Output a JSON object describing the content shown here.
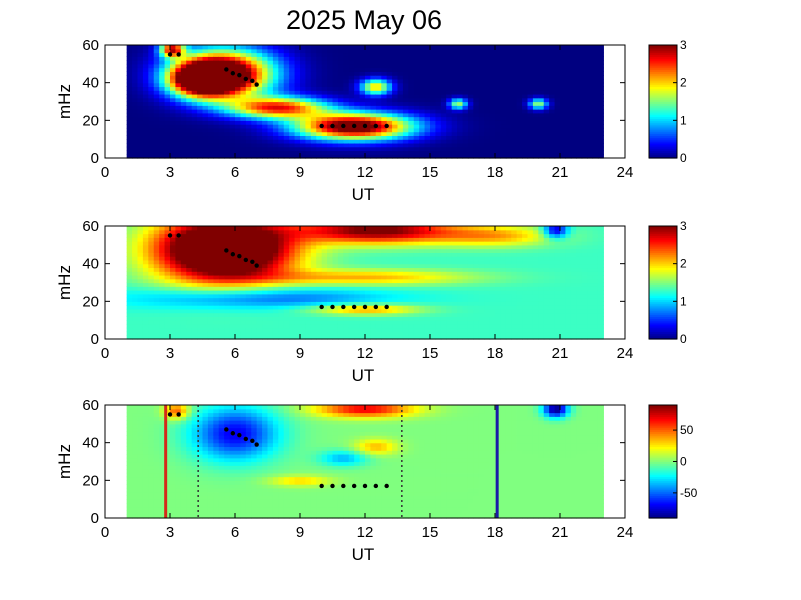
{
  "title": "2025 May 06",
  "chart_data": [
    {
      "type": "heatmap",
      "xlabel": "UT",
      "ylabel": "mHz",
      "xlim": [
        0,
        24
      ],
      "ylim": [
        0,
        60
      ],
      "xticks": [
        "0",
        "3",
        "6",
        "9",
        "12",
        "15",
        "18",
        "21",
        "24"
      ],
      "yticks": [
        "0",
        "20",
        "40",
        "60"
      ],
      "data_range_ut": [
        1,
        23
      ],
      "colorbar": {
        "ticks": [
          "0",
          "1",
          "2",
          "3"
        ],
        "range": [
          0,
          3
        ]
      },
      "features": [
        {
          "ut": 5.5,
          "mhz": 45,
          "strength": 3.5,
          "sx": 1.6,
          "sy": 9
        },
        {
          "ut": 4.5,
          "mhz": 42,
          "strength": 3.2,
          "sx": 1.0,
          "sy": 6
        },
        {
          "ut": 8.0,
          "mhz": 27,
          "strength": 2.5,
          "sx": 1.6,
          "sy": 4
        },
        {
          "ut": 11.5,
          "mhz": 17,
          "strength": 3.4,
          "sx": 1.9,
          "sy": 5
        },
        {
          "ut": 12.5,
          "mhz": 38,
          "strength": 2.0,
          "sx": 0.5,
          "sy": 3
        },
        {
          "ut": 16.3,
          "mhz": 29,
          "strength": 1.6,
          "sx": 0.3,
          "sy": 2
        },
        {
          "ut": 20.0,
          "mhz": 29,
          "strength": 1.6,
          "sx": 0.3,
          "sy": 2
        },
        {
          "ut": 3.1,
          "mhz": 58,
          "strength": 2.5,
          "sx": 0.4,
          "sy": 3
        }
      ],
      "background": 0,
      "markers": [
        {
          "ut": 3.0,
          "mhz": 55
        },
        {
          "ut": 3.4,
          "mhz": 55
        },
        {
          "ut": 5.6,
          "mhz": 47
        },
        {
          "ut": 5.9,
          "mhz": 45
        },
        {
          "ut": 6.2,
          "mhz": 44
        },
        {
          "ut": 6.5,
          "mhz": 42
        },
        {
          "ut": 6.8,
          "mhz": 41
        },
        {
          "ut": 7.0,
          "mhz": 39
        },
        {
          "ut": 10.0,
          "mhz": 17
        },
        {
          "ut": 10.5,
          "mhz": 17
        },
        {
          "ut": 11.0,
          "mhz": 17
        },
        {
          "ut": 11.5,
          "mhz": 17
        },
        {
          "ut": 12.0,
          "mhz": 17
        },
        {
          "ut": 12.5,
          "mhz": 17
        },
        {
          "ut": 13.0,
          "mhz": 17
        }
      ],
      "vlines": []
    },
    {
      "type": "heatmap",
      "xlabel": "UT",
      "ylabel": "mHz",
      "xlim": [
        0,
        24
      ],
      "ylim": [
        0,
        60
      ],
      "xticks": [
        "0",
        "3",
        "6",
        "9",
        "12",
        "15",
        "18",
        "21",
        "24"
      ],
      "yticks": [
        "0",
        "20",
        "40",
        "60"
      ],
      "data_range_ut": [
        1,
        23
      ],
      "colorbar": {
        "ticks": [
          "0",
          "1",
          "2",
          "3"
        ],
        "range": [
          0,
          3
        ]
      },
      "features": [
        {
          "ut": 5.5,
          "mhz": 48,
          "strength": 3.0,
          "sx": 2.2,
          "sy": 12
        },
        {
          "ut": 12.5,
          "mhz": 58,
          "strength": 1.8,
          "sx": 2.5,
          "sy": 5
        },
        {
          "ut": 12.0,
          "mhz": 33,
          "strength": 0.8,
          "sx": 3.5,
          "sy": 3
        },
        {
          "ut": 12.0,
          "mhz": 16,
          "strength": 0.9,
          "sx": 1.8,
          "sy": 2
        },
        {
          "ut": 18.0,
          "mhz": 55,
          "strength": 0.8,
          "sx": 2.0,
          "sy": 4
        },
        {
          "ut": 7.0,
          "mhz": 22,
          "strength": -0.7,
          "sx": 4.0,
          "sy": 4
        },
        {
          "ut": 20.8,
          "mhz": 58,
          "strength": -1.2,
          "sx": 0.4,
          "sy": 3
        }
      ],
      "background": 1.3,
      "markers": [
        {
          "ut": 3.0,
          "mhz": 55
        },
        {
          "ut": 3.4,
          "mhz": 55
        },
        {
          "ut": 5.6,
          "mhz": 47
        },
        {
          "ut": 5.9,
          "mhz": 45
        },
        {
          "ut": 6.2,
          "mhz": 44
        },
        {
          "ut": 6.5,
          "mhz": 42
        },
        {
          "ut": 6.8,
          "mhz": 41
        },
        {
          "ut": 7.0,
          "mhz": 39
        },
        {
          "ut": 10.0,
          "mhz": 17
        },
        {
          "ut": 10.5,
          "mhz": 17
        },
        {
          "ut": 11.0,
          "mhz": 17
        },
        {
          "ut": 11.5,
          "mhz": 17
        },
        {
          "ut": 12.0,
          "mhz": 17
        },
        {
          "ut": 12.5,
          "mhz": 17
        },
        {
          "ut": 13.0,
          "mhz": 17
        }
      ],
      "vlines": []
    },
    {
      "type": "heatmap",
      "xlabel": "UT",
      "ylabel": "mHz",
      "xlim": [
        0,
        24
      ],
      "ylim": [
        0,
        60
      ],
      "xticks": [
        "0",
        "3",
        "6",
        "9",
        "12",
        "15",
        "18",
        "21",
        "24"
      ],
      "yticks": [
        "0",
        "20",
        "40",
        "60"
      ],
      "data_range_ut": [
        1,
        23
      ],
      "colorbar": {
        "ticks": [
          "-50",
          "0",
          "50"
        ],
        "range": [
          -90,
          90
        ]
      },
      "features": [
        {
          "ut": 6.0,
          "mhz": 45,
          "strength": -70,
          "sx": 1.4,
          "sy": 10
        },
        {
          "ut": 12.0,
          "mhz": 58,
          "strength": 70,
          "sx": 1.6,
          "sy": 3
        },
        {
          "ut": 3.3,
          "mhz": 57,
          "strength": 55,
          "sx": 0.4,
          "sy": 3
        },
        {
          "ut": 11.0,
          "mhz": 32,
          "strength": -35,
          "sx": 0.8,
          "sy": 3
        },
        {
          "ut": 12.5,
          "mhz": 38,
          "strength": 35,
          "sx": 0.7,
          "sy": 3
        },
        {
          "ut": 9.0,
          "mhz": 20,
          "strength": 30,
          "sx": 1.0,
          "sy": 2
        },
        {
          "ut": 20.8,
          "mhz": 58,
          "strength": -90,
          "sx": 0.4,
          "sy": 3
        }
      ],
      "background": 0,
      "markers": [
        {
          "ut": 3.0,
          "mhz": 55
        },
        {
          "ut": 3.4,
          "mhz": 55
        },
        {
          "ut": 5.6,
          "mhz": 47
        },
        {
          "ut": 5.9,
          "mhz": 45
        },
        {
          "ut": 6.2,
          "mhz": 44
        },
        {
          "ut": 6.5,
          "mhz": 42
        },
        {
          "ut": 6.8,
          "mhz": 41
        },
        {
          "ut": 7.0,
          "mhz": 39
        },
        {
          "ut": 10.0,
          "mhz": 17
        },
        {
          "ut": 10.5,
          "mhz": 17
        },
        {
          "ut": 11.0,
          "mhz": 17
        },
        {
          "ut": 11.5,
          "mhz": 17
        },
        {
          "ut": 12.0,
          "mhz": 17
        },
        {
          "ut": 12.5,
          "mhz": 17
        },
        {
          "ut": 13.0,
          "mhz": 17
        }
      ],
      "vlines": [
        {
          "ut": 2.8,
          "color": "#d42a1a",
          "style": "solid"
        },
        {
          "ut": 4.3,
          "color": "#333333",
          "style": "dotted"
        },
        {
          "ut": 13.7,
          "color": "#333333",
          "style": "dotted"
        },
        {
          "ut": 18.1,
          "color": "#1a1aa8",
          "style": "solid"
        }
      ]
    }
  ]
}
